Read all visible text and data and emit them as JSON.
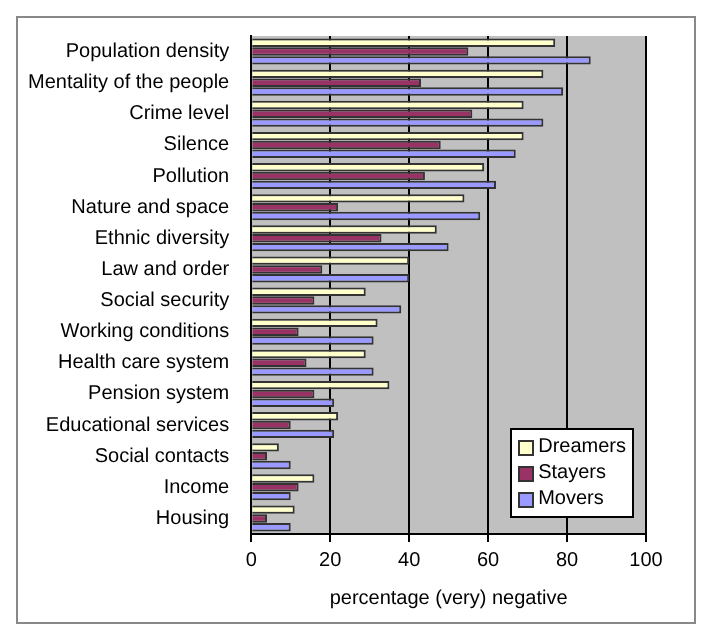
{
  "chart_data": {
    "type": "bar",
    "orientation": "horizontal",
    "xlabel": "percentage (very) negative",
    "categories": [
      "Population density",
      "Mentality of the people",
      "Crime level",
      "Silence",
      "Pollution",
      "Nature and space",
      "Ethnic diversity",
      "Law and order",
      "Social security",
      "Working conditions",
      "Health care system",
      "Pension system",
      "Educational services",
      "Social contacts",
      "Income",
      "Housing"
    ],
    "series": [
      {
        "name": "Dreamers",
        "color": "#ffffcc",
        "values": [
          77,
          74,
          69,
          69,
          59,
          54,
          47,
          40,
          29,
          32,
          29,
          35,
          22,
          7,
          16,
          11
        ]
      },
      {
        "name": "Stayers",
        "color": "#993366",
        "values": [
          55,
          43,
          56,
          48,
          44,
          22,
          33,
          18,
          16,
          12,
          14,
          16,
          10,
          4,
          12,
          4
        ]
      },
      {
        "name": "Movers",
        "color": "#9999ff",
        "values": [
          86,
          79,
          74,
          67,
          62,
          58,
          50,
          40,
          38,
          31,
          31,
          21,
          21,
          10,
          10,
          10
        ]
      }
    ],
    "xlim": [
      0,
      100
    ],
    "xticks": [
      0,
      20,
      40,
      60,
      80,
      100
    ],
    "grid": "x",
    "legend": "bottom right"
  }
}
